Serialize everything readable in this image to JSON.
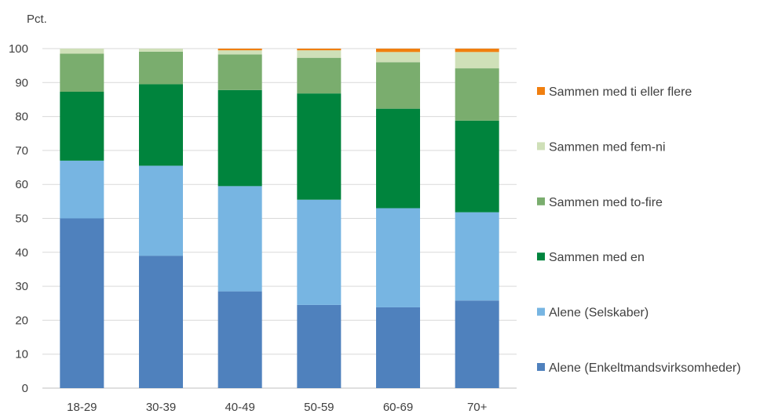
{
  "chart_data": {
    "type": "bar",
    "stacked": true,
    "ylabel": "Pct.",
    "ylim": [
      0,
      100
    ],
    "yticks": [
      0,
      10,
      20,
      30,
      40,
      50,
      60,
      70,
      80,
      90,
      100
    ],
    "grid": true,
    "legend_position": "right",
    "categories": [
      "18-29",
      "30-39",
      "40-49",
      "50-59",
      "60-69",
      "70+"
    ],
    "series": [
      {
        "name": "Alene (Enkeltmandsvirksomheder)",
        "color": "#4f81bd",
        "values": [
          50.0,
          39.0,
          28.5,
          24.5,
          23.8,
          25.8
        ]
      },
      {
        "name": "Alene (Selskaber)",
        "color": "#77b5e2",
        "values": [
          17.0,
          26.5,
          31.0,
          31.0,
          29.2,
          26.0
        ]
      },
      {
        "name": "Sammen med en",
        "color": "#00843d",
        "values": [
          20.3,
          24.0,
          28.3,
          31.3,
          29.3,
          27.0
        ]
      },
      {
        "name": "Sammen med to-fire",
        "color": "#7aad6e",
        "values": [
          11.2,
          9.6,
          10.5,
          10.5,
          13.7,
          15.4
        ]
      },
      {
        "name": "Sammen med fem-ni",
        "color": "#cfe0b8",
        "values": [
          1.5,
          0.9,
          1.2,
          2.2,
          3.0,
          4.8
        ]
      },
      {
        "name": "Sammen med ti eller flere",
        "color": "#f07f10",
        "values": [
          0.0,
          0.0,
          0.5,
          0.5,
          1.0,
          1.0
        ]
      }
    ]
  }
}
